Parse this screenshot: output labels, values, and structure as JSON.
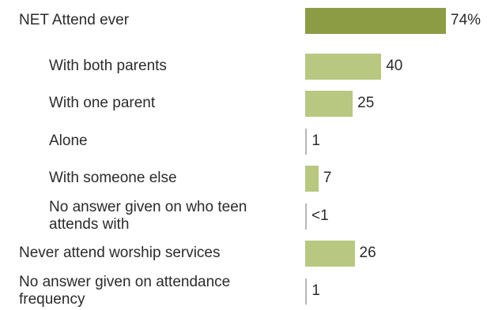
{
  "colors": {
    "net": "#8b9c45",
    "sub": "#b8c880",
    "text": "#2b2b2b"
  },
  "chart_data": {
    "type": "bar",
    "orientation": "horizontal",
    "title": "",
    "xlabel": "",
    "ylabel": "",
    "xlim": [
      0,
      74
    ],
    "unit": "%",
    "categories": [
      "NET Attend ever",
      "With both parents",
      "With one parent",
      "Alone",
      "With someone else",
      "No answer given on who teen attends with",
      "Never attend worship services",
      "No answer given on attendance frequency"
    ],
    "label_lines": [
      [
        "NET Attend ever"
      ],
      [
        "With both parents"
      ],
      [
        "With one parent"
      ],
      [
        "Alone"
      ],
      [
        "With someone else"
      ],
      [
        "No answer given on who teen",
        "attends with"
      ],
      [
        "Never attend worship services"
      ],
      [
        "No answer given on attendance",
        "frequency"
      ]
    ],
    "values": [
      74,
      40,
      25,
      1,
      7,
      0.4,
      26,
      1
    ],
    "data_labels": [
      "74%",
      "40",
      "25",
      "1",
      "7",
      "<1",
      "26",
      "1"
    ],
    "levels": [
      0,
      1,
      1,
      1,
      1,
      1,
      0,
      0
    ]
  }
}
